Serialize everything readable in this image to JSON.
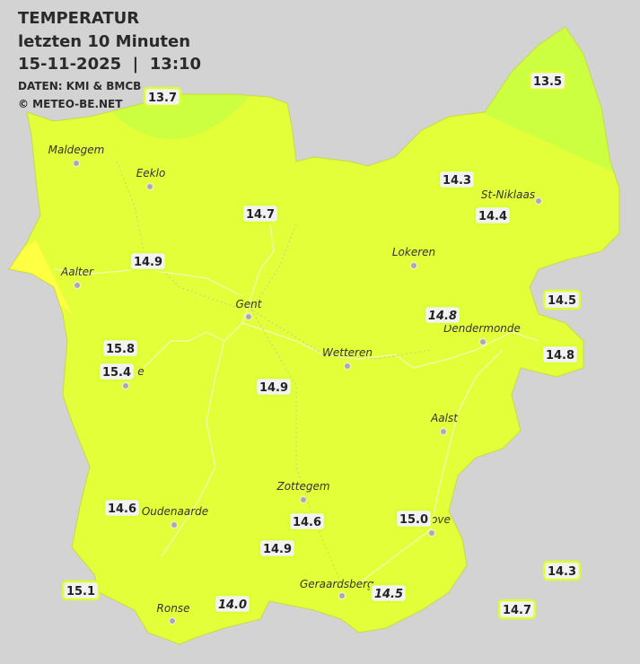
{
  "header": {
    "title": "TEMPERATUR",
    "subtitle": "letzten 10 Minuten",
    "datetime": "15-11-2025  |  13:10",
    "source": "DATEN: KMI & BMCB",
    "copyright": "© METEO-BE.NET"
  },
  "cities": [
    "Maldegem",
    "Eeklo",
    "Aalter",
    "Gent",
    "Lokeren",
    "St-Niklaas",
    "Dendermonde",
    "Wetteren",
    "Aalst",
    "Zottegem",
    "Oudenaarde",
    "Geraardsberg",
    "Ronse",
    "e",
    "ove"
  ],
  "stations": [
    "13.7",
    "13.5",
    "14.3",
    "14.4",
    "14.7",
    "14.9",
    "14.5",
    "14.8",
    "14.8",
    "15.8",
    "15.4",
    "14.9",
    "14.6",
    "14.6",
    "15.0",
    "14.9",
    "14.3",
    "15.1",
    "14.0",
    "14.5",
    "14.7"
  ]
}
